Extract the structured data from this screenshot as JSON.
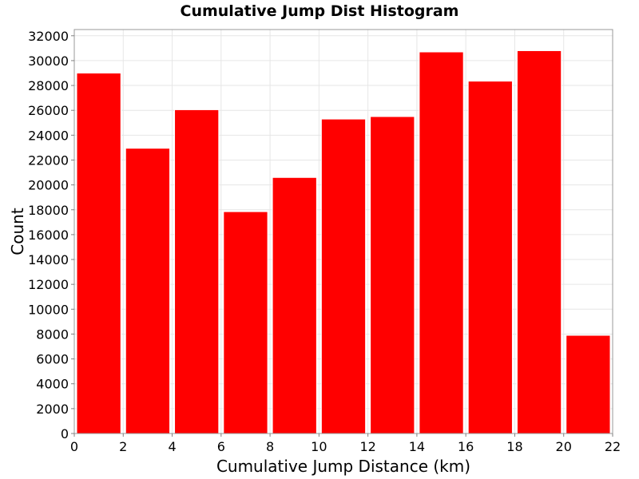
{
  "chart_data": {
    "type": "bar",
    "title": "Cumulative Jump Dist Histogram",
    "xlabel": "Cumulative Jump Distance (km)",
    "ylabel": "Count",
    "xlim": [
      0,
      22
    ],
    "ylim": [
      0,
      32500
    ],
    "x_ticks": [
      0,
      2,
      4,
      6,
      8,
      10,
      12,
      14,
      16,
      18,
      20,
      22
    ],
    "y_ticks": [
      0,
      2000,
      4000,
      6000,
      8000,
      10000,
      12000,
      14000,
      16000,
      18000,
      20000,
      22000,
      24000,
      26000,
      28000,
      30000,
      32000
    ],
    "bins": [
      {
        "x0": 0,
        "x1": 2,
        "value": 29000
      },
      {
        "x0": 2,
        "x1": 4,
        "value": 22950
      },
      {
        "x0": 4,
        "x1": 6,
        "value": 26050
      },
      {
        "x0": 6,
        "x1": 8,
        "value": 17850
      },
      {
        "x0": 8,
        "x1": 10,
        "value": 20600
      },
      {
        "x0": 10,
        "x1": 12,
        "value": 25300
      },
      {
        "x0": 12,
        "x1": 14,
        "value": 25500
      },
      {
        "x0": 14,
        "x1": 16,
        "value": 30700
      },
      {
        "x0": 16,
        "x1": 18,
        "value": 28350
      },
      {
        "x0": 18,
        "x1": 20,
        "value": 30800
      },
      {
        "x0": 20,
        "x1": 22,
        "value": 7900
      }
    ],
    "bar_color": "#ff0000",
    "grid": true,
    "legend": "none"
  }
}
